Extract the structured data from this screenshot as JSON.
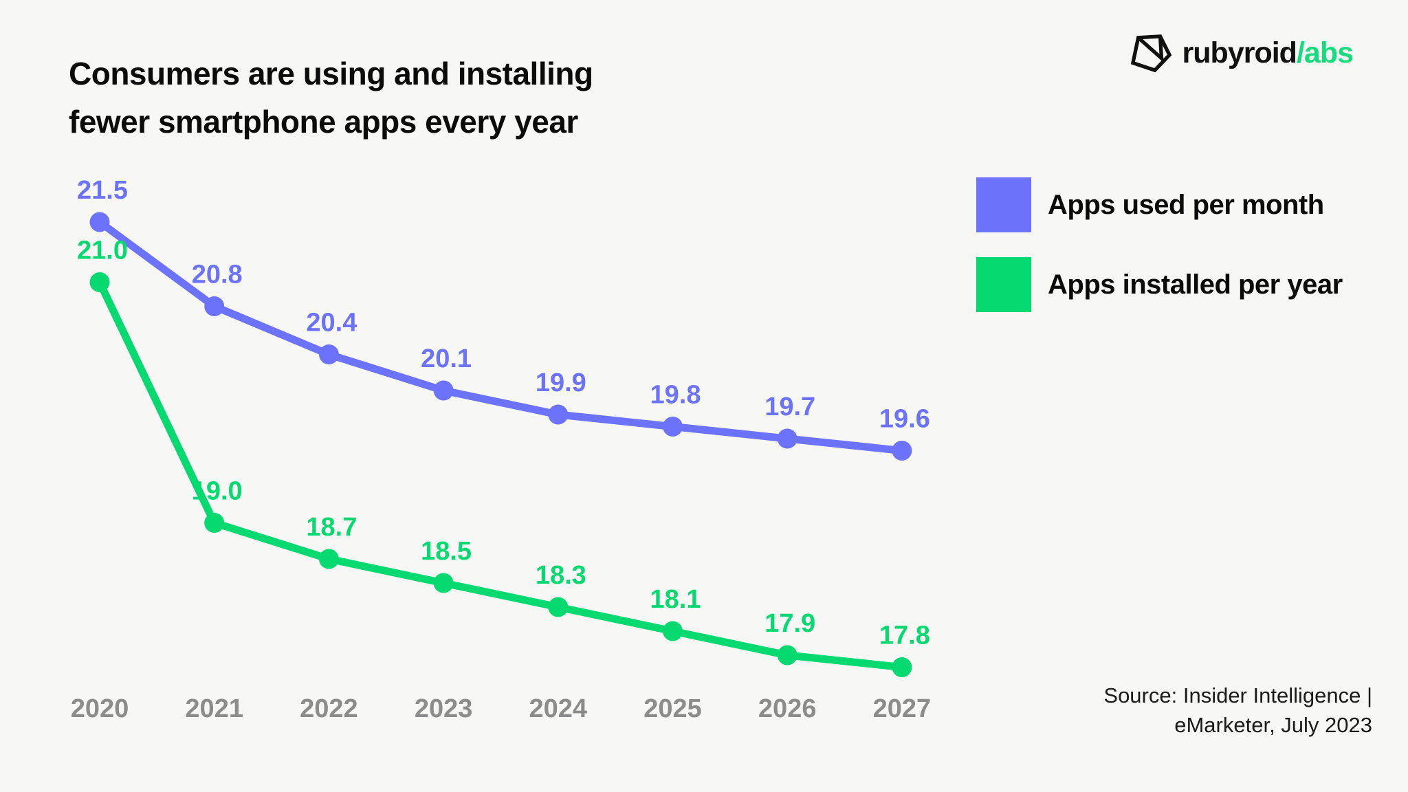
{
  "title": {
    "line1": "Consumers are using and installing",
    "line2": "fewer smartphone apps every year"
  },
  "logo": {
    "icon": "gem-envelope-icon",
    "text_black": "rubyroid",
    "text_accent": "/abs",
    "accent_color": "#16DC7E"
  },
  "legend": {
    "items": [
      {
        "label": "Apps used per month",
        "color": "#6C72F9"
      },
      {
        "label": "Apps installed per year",
        "color": "#05D96F"
      }
    ]
  },
  "source": {
    "line1": "Source: Insider Intelligence |",
    "line2": "eMarketer, July 2023"
  },
  "colors": {
    "background": "#F7F7F5",
    "series_apps_used": "#6C72F9",
    "series_apps_installed": "#05D96F",
    "year_labels": "#8C8C8C",
    "title_text": "#0B0B0B"
  },
  "chart_data": {
    "type": "line",
    "title": "Consumers are using and installing fewer smartphone apps every year",
    "x": [
      2020,
      2021,
      2022,
      2023,
      2024,
      2025,
      2026,
      2027
    ],
    "series": [
      {
        "name": "Apps used per month",
        "id": "apps-used-per-month",
        "color": "#6C72F9",
        "values": [
          21.5,
          20.8,
          20.4,
          20.1,
          19.9,
          19.8,
          19.7,
          19.6
        ]
      },
      {
        "name": "Apps installed per year",
        "id": "apps-installed-per-year",
        "color": "#05D96F",
        "values": [
          21.0,
          19.0,
          18.7,
          18.5,
          18.3,
          18.1,
          17.9,
          17.8
        ]
      }
    ],
    "xlabel": "",
    "ylabel": "",
    "ylim": [
      17.5,
      21.8
    ],
    "grid": false,
    "legend_position": "right",
    "data_labels": true
  }
}
